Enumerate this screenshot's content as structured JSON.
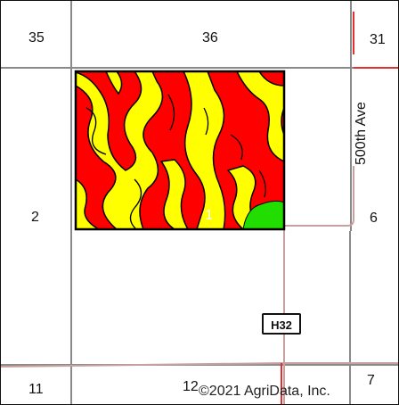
{
  "map": {
    "section_numbers": {
      "s35": "35",
      "s36": "36",
      "s31": "31",
      "s2": "2",
      "s1": "1",
      "s6": "6",
      "s11": "11",
      "s12": "12",
      "s7": "7"
    },
    "road_label": "500th Ave",
    "highway_shield": "H32",
    "copyright": "©2021 AgriData, Inc."
  },
  "colors": {
    "soil_red": "#ff0000",
    "soil_yellow": "#ffff00",
    "soil_green": "#22dd00",
    "road_red": "#e03030",
    "road_tan": "#c9a0a0",
    "section_line": "#8a8a8a"
  }
}
